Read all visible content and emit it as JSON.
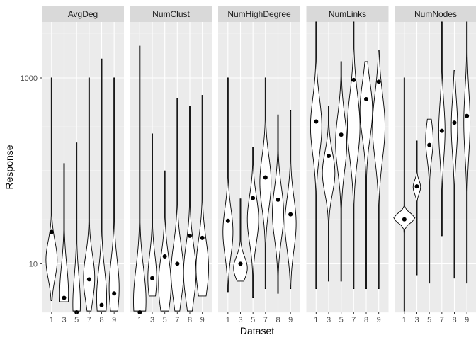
{
  "chart_data": {
    "type": "violin",
    "facet_by": "metric",
    "xlabel": "Dataset",
    "ylabel": "Response",
    "y_scale": "log10",
    "ylim": [
      3,
      4000
    ],
    "y_ticks": [
      10,
      1000
    ],
    "y_tick_labels": [
      "10",
      "1000"
    ],
    "categories": [
      "1",
      "3",
      "5",
      "7",
      "8",
      "9"
    ],
    "grid": true,
    "colors": {
      "panel_bg": "#ebebeb",
      "grid_major": "#ffffff",
      "grid_minor": "#f2f2f2",
      "strip_bg": "#d9d9d9",
      "violin_fill": "#ffffff",
      "outline": "#000000",
      "point": "#000000"
    },
    "panels": [
      {
        "label": "AvgDeg",
        "violins": [
          {
            "x": "1",
            "min": 4.0,
            "max": 1000,
            "point": 22
          },
          {
            "x": "3",
            "min": 3.9,
            "max": 120,
            "point": 4.3
          },
          {
            "x": "5",
            "min": 3.1,
            "max": 200,
            "point": 2.8
          },
          {
            "x": "7",
            "min": 3.1,
            "max": 1000,
            "point": 6.8
          },
          {
            "x": "8",
            "min": 3.1,
            "max": 1600,
            "point": 3.6
          },
          {
            "x": "9",
            "min": 3.1,
            "max": 1000,
            "point": 4.8
          }
        ]
      },
      {
        "label": "NumClust",
        "violins": [
          {
            "x": "1",
            "min": 3.1,
            "max": 2200,
            "point": 3.0
          },
          {
            "x": "3",
            "min": 4.5,
            "max": 250,
            "point": 7.0
          },
          {
            "x": "5",
            "min": 3.1,
            "max": 100,
            "point": 12
          },
          {
            "x": "7",
            "min": 3.1,
            "max": 600,
            "point": 10
          },
          {
            "x": "8",
            "min": 3.1,
            "max": 500,
            "point": 20
          },
          {
            "x": "9",
            "min": 4.5,
            "max": 650,
            "point": 19
          }
        ]
      },
      {
        "label": "NumHighDegree",
        "violins": [
          {
            "x": "1",
            "min": 5.0,
            "max": 1000,
            "point": 29
          },
          {
            "x": "3",
            "min": 6.5,
            "max": 50,
            "point": 10
          },
          {
            "x": "5",
            "min": 4.3,
            "max": 180,
            "point": 51
          },
          {
            "x": "7",
            "min": 5.4,
            "max": 1000,
            "point": 85
          },
          {
            "x": "8",
            "min": 4.8,
            "max": 400,
            "point": 49
          },
          {
            "x": "9",
            "min": 5.4,
            "max": 450,
            "point": 34
          }
        ]
      },
      {
        "label": "NumLinks",
        "violins": [
          {
            "x": "1",
            "min": 5.4,
            "max": 4000,
            "point": 340
          },
          {
            "x": "3",
            "min": 6.5,
            "max": 500,
            "point": 145
          },
          {
            "x": "5",
            "min": 6.5,
            "max": 1500,
            "point": 245
          },
          {
            "x": "7",
            "min": 5.4,
            "max": 10000,
            "point": 950
          },
          {
            "x": "8",
            "min": 5.4,
            "max": 1500,
            "point": 590
          },
          {
            "x": "9",
            "min": 5.4,
            "max": 2000,
            "point": 910
          }
        ]
      },
      {
        "label": "NumNodes",
        "violins": [
          {
            "x": "1",
            "min": 3.1,
            "max": 1000,
            "point": 30
          },
          {
            "x": "3",
            "min": 7.6,
            "max": 210,
            "point": 68
          },
          {
            "x": "5",
            "min": 6.2,
            "max": 360,
            "point": 190
          },
          {
            "x": "7",
            "min": 20,
            "max": 9000,
            "point": 270
          },
          {
            "x": "8",
            "min": 7.0,
            "max": 1200,
            "point": 330
          },
          {
            "x": "9",
            "min": 6.2,
            "max": 5000,
            "point": 390
          }
        ]
      }
    ]
  }
}
